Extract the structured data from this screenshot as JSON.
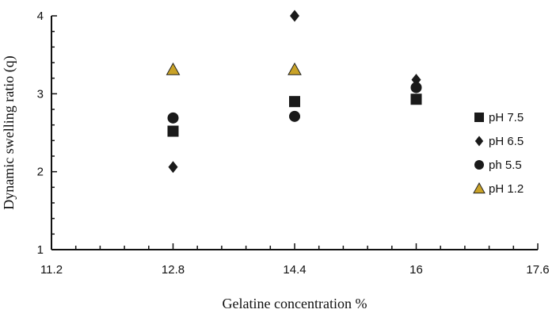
{
  "chart_data": {
    "type": "scatter",
    "title": "",
    "xlabel": "Gelatine concentration  %",
    "ylabel": "Dynamic swelling ratio  (q)",
    "xlim": [
      11.2,
      17.6
    ],
    "ylim": [
      1,
      4
    ],
    "xticks": [
      11.2,
      12.8,
      14.4,
      16,
      17.6
    ],
    "xtick_labels": [
      "11.2",
      "12.8",
      "14.4",
      "16",
      "17.6"
    ],
    "yticks": [
      1,
      2,
      3,
      4
    ],
    "ytick_labels": [
      "1",
      "2",
      "3",
      "4"
    ],
    "grid": false,
    "legend_position": "right",
    "series": [
      {
        "name": "pH 7.5",
        "marker": "square",
        "color": "#1a1a1a",
        "x": [
          12.8,
          14.4,
          16
        ],
        "y": [
          2.52,
          2.9,
          2.93
        ]
      },
      {
        "name": "pH 6.5",
        "marker": "diamond",
        "color": "#1a1a1a",
        "x": [
          12.8,
          14.4,
          16
        ],
        "y": [
          2.06,
          4.0,
          3.18
        ]
      },
      {
        "name": "ph 5.5",
        "marker": "circle",
        "color": "#1a1a1a",
        "x": [
          12.8,
          14.4,
          16
        ],
        "y": [
          2.69,
          2.71,
          3.08
        ]
      },
      {
        "name": "pH 1.2",
        "marker": "triangle",
        "color": "#c9a227",
        "x": [
          12.8,
          14.4
        ],
        "y": [
          3.31,
          3.31
        ]
      }
    ]
  }
}
